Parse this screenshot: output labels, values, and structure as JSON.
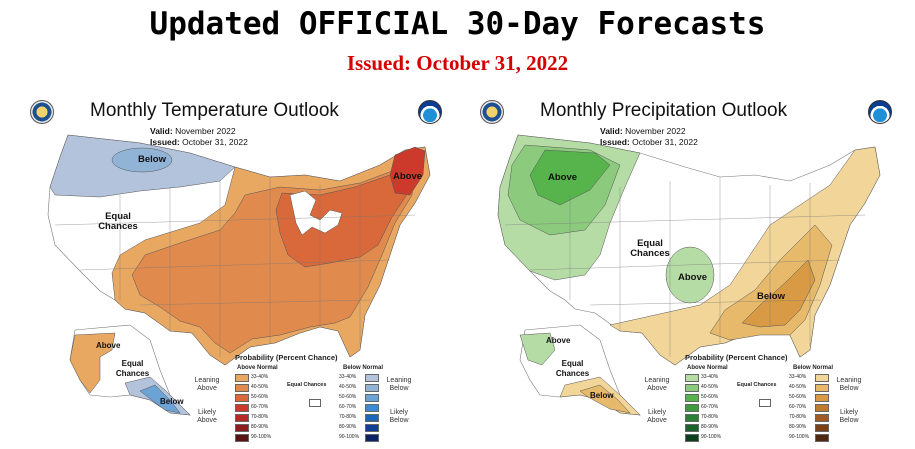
{
  "header": {
    "title": "Updated OFFICIAL 30-Day Forecasts",
    "issued": "Issued: October 31, 2022"
  },
  "temperature": {
    "title": "Monthly Temperature Outlook",
    "valid_label": "Valid:",
    "valid_value": "November 2022",
    "issued_label": "Issued:",
    "issued_value": "October 31, 2022",
    "regions": {
      "below_nw": "Below",
      "equal_west": "Equal Chances",
      "above_ne": "Above",
      "alaska_above": "Above",
      "alaska_equal": "Equal Chances",
      "alaska_below": "Below"
    }
  },
  "precipitation": {
    "title": "Monthly Precipitation Outlook",
    "valid_label": "Valid:",
    "valid_value": "November 2022",
    "issued_label": "Issued:",
    "issued_value": "October 31, 2022",
    "regions": {
      "above_nw": "Above",
      "equal_central": "Equal Chances",
      "above_central": "Above",
      "below_se": "Below",
      "alaska_above": "Above",
      "alaska_equal": "Equal Chances",
      "alaska_below": "Below"
    }
  },
  "legend": {
    "title": "Probability (Percent Chance)",
    "above_header": "Above Normal",
    "below_header": "Below Normal",
    "ranges": [
      "33-40%",
      "40-50%",
      "50-60%",
      "60-70%",
      "70-80%",
      "80-90%",
      "90-100%"
    ],
    "equal_label": "Equal Chances",
    "temp_leaning_above": "Leaning Above",
    "temp_likely_above": "Likely Above",
    "temp_leaning_below": "Leaning Below",
    "temp_likely_below": "Likely Below",
    "precip_leaning_above": "Leaning Above",
    "precip_likely_above": "Likely Above",
    "precip_leaning_below": "Leaning Below",
    "precip_likely_below": "Likely Below"
  },
  "colors": {
    "temp_above": [
      "#e8a861",
      "#e08a4e",
      "#d9683a",
      "#cc3a2b",
      "#b52a25",
      "#8e1e1e",
      "#5c1212"
    ],
    "temp_below": [
      "#b3c3dc",
      "#90b3d6",
      "#6aa3d4",
      "#3d8bd1",
      "#1e66b8",
      "#113f95",
      "#0c2366"
    ],
    "precip_above": [
      "#b6dca6",
      "#8ccb7e",
      "#57b34b",
      "#3d9a3e",
      "#2b7f36",
      "#1b612a",
      "#0c3f1b"
    ],
    "precip_below": [
      "#f2d699",
      "#e6b96b",
      "#d89a44",
      "#c07a2e",
      "#9e5b22",
      "#7a4018",
      "#4e2810"
    ]
  }
}
